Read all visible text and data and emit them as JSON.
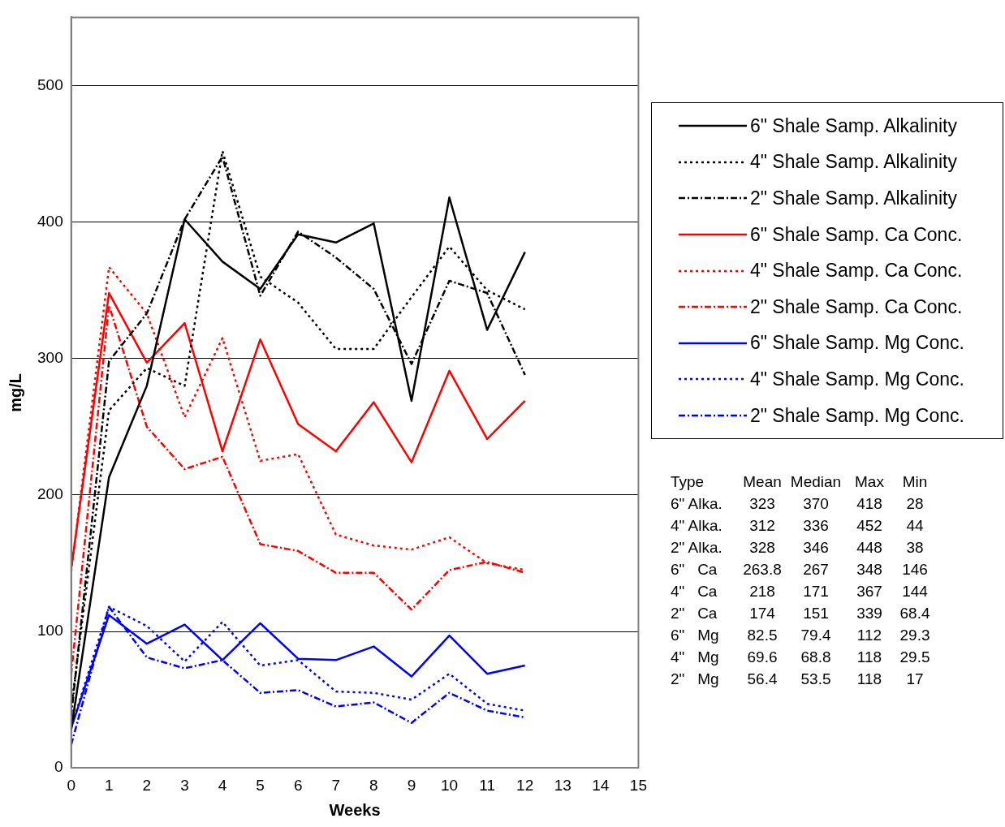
{
  "chart_data": {
    "type": "line",
    "xlabel": "Weeks",
    "ylabel": "mg/L",
    "x": [
      0,
      1,
      2,
      3,
      4,
      5,
      6,
      7,
      8,
      9,
      10,
      11,
      12
    ],
    "xlim": [
      0,
      15
    ],
    "xticks": [
      0,
      1,
      2,
      3,
      4,
      5,
      6,
      7,
      8,
      9,
      10,
      11,
      12,
      13,
      14,
      15
    ],
    "ylim": [
      0,
      550
    ],
    "yticks": [
      0,
      100,
      200,
      300,
      400,
      500
    ],
    "grid": "y",
    "legend": "right",
    "marker": "none",
    "series": [
      {
        "name": "6\" Shale Samp. Alkalinity",
        "color": "#000000",
        "line_style": "solid",
        "values": [
          28,
          213,
          280,
          402,
          371,
          351,
          391,
          385,
          399,
          269,
          418,
          321,
          378
        ]
      },
      {
        "name": "4\" Shale Samp. Alkalinity",
        "color": "#000000",
        "line_style": "dotted",
        "values": [
          44,
          262,
          293,
          280,
          452,
          360,
          341,
          307,
          307,
          345,
          382,
          350,
          336
        ]
      },
      {
        "name": "2\" Shale Samp. Alkalinity",
        "color": "#000000",
        "line_style": "dashed",
        "values": [
          38,
          298,
          333,
          402,
          448,
          346,
          393,
          374,
          351,
          296,
          357,
          348,
          288
        ]
      },
      {
        "name": "6\" Shale Samp. Ca Conc.",
        "color": "#ff0000",
        "line_style": "solid",
        "values": [
          146,
          348,
          297,
          326,
          232,
          314,
          252,
          232,
          268,
          224,
          291,
          241,
          269
        ]
      },
      {
        "name": "4\" Shale Samp. Ca Conc.",
        "color": "#ff0000",
        "line_style": "dotted",
        "values": [
          144,
          367,
          333,
          257,
          315,
          225,
          230,
          171,
          163,
          160,
          169,
          150,
          145
        ]
      },
      {
        "name": "2\" Shale Samp. Ca Conc.",
        "color": "#ff0000",
        "line_style": "dashed",
        "values": [
          68.4,
          339,
          250,
          219,
          228,
          164,
          159,
          143,
          143,
          116,
          145,
          151,
          143
        ]
      },
      {
        "name": "6\" Shale Samp. Mg Conc.",
        "color": "#0000ff",
        "line_style": "solid",
        "values": [
          29.3,
          112,
          91,
          105,
          79,
          106,
          80,
          79,
          89,
          67,
          97,
          69,
          75
        ]
      },
      {
        "name": "4\" Shale Samp. Mg Conc.",
        "color": "#0000ff",
        "line_style": "dotted",
        "values": [
          29.5,
          118,
          104,
          78,
          107,
          75,
          79,
          56,
          55,
          50,
          69,
          47,
          42
        ]
      },
      {
        "name": "2\" Shale Samp. Mg Conc.",
        "color": "#0000ff",
        "line_style": "dashed",
        "values": [
          17,
          118,
          81,
          73,
          79,
          55,
          57,
          45,
          48,
          33,
          55,
          42,
          37
        ]
      }
    ],
    "annotations": [
      "Type\tMean\tMedian\tMax\tMin",
      "6\" Alka.\t323\t370\t418\t28",
      "4\" Alka.\t312\t336\t452\t44",
      "2\" Alka.\t328\t346\t448\t38",
      "6\"   Ca\t263.8\t267\t348\t146",
      "4\"   Ca\t218\t171\t367\t144",
      "2\"   Ca\t174\t151\t339\t68.4",
      "6\"   Mg\t82.5\t79.4\t112\t29.3",
      "4\"   Mg\t69.6\t68.8\t118\t29.5",
      "2\"   Mg\t56.4\t53.5\t118\t17"
    ]
  }
}
